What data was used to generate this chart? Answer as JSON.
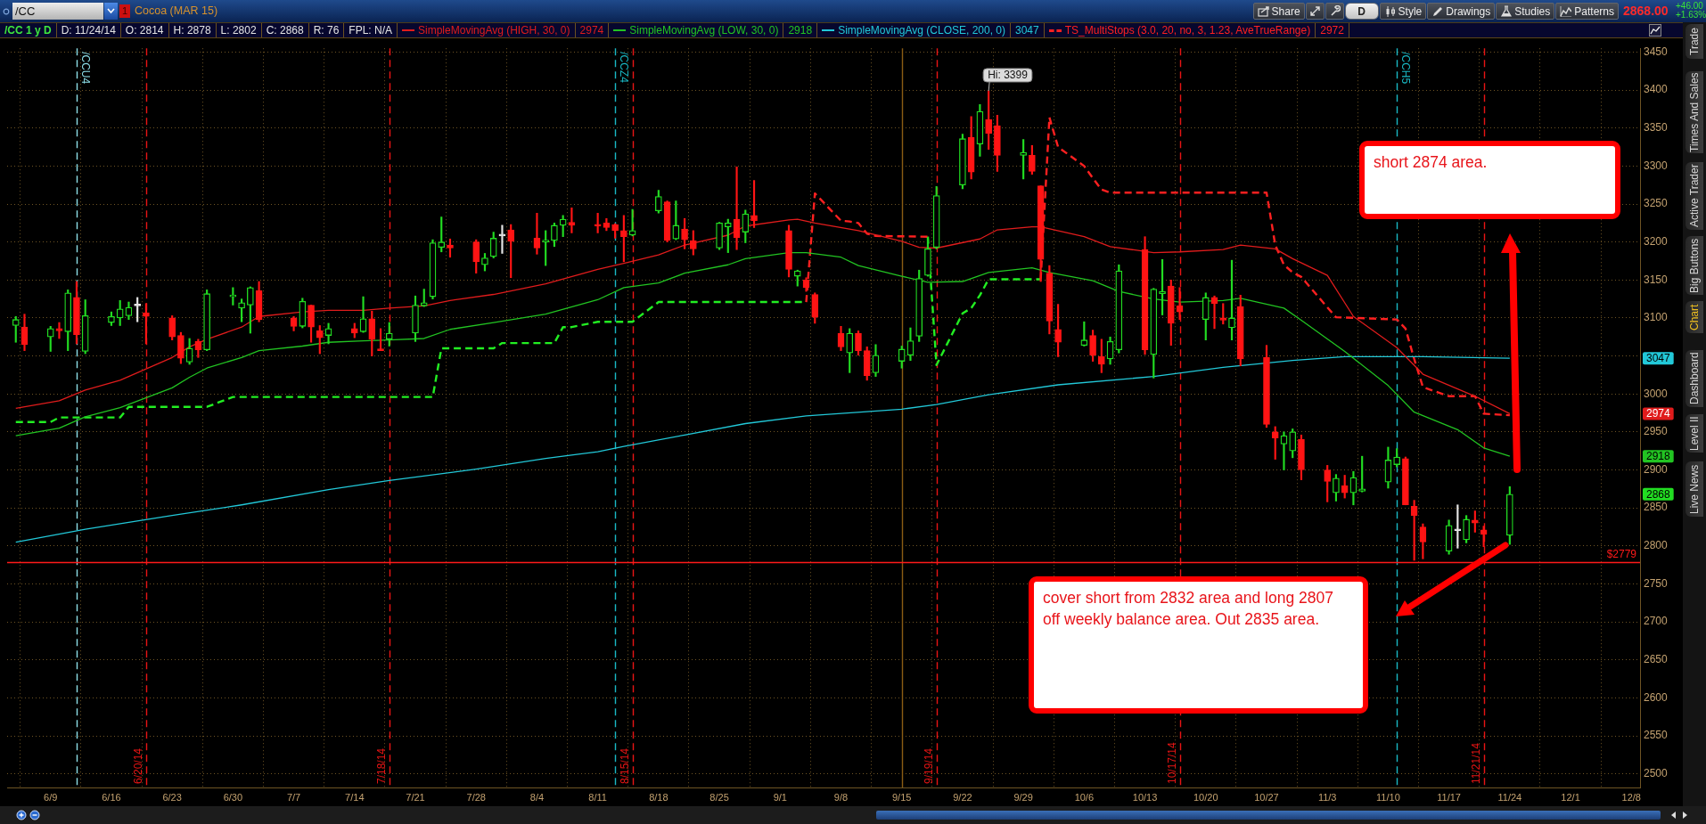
{
  "chart_data": {
    "type": "candlestick",
    "title": "/CC",
    "subtitle": "Cocoa (MAR 15)",
    "xlim": [
      "--06-04",
      "--12-09"
    ],
    "ylim": [
      2482,
      3455
    ],
    "xticks": [
      {
        "value": "--06-09",
        "label": "6/9"
      },
      {
        "value": "--06-16",
        "label": "6/16"
      },
      {
        "value": "--06-23",
        "label": "6/23"
      },
      {
        "value": "--06-30",
        "label": "6/30"
      },
      {
        "value": "--07-07",
        "label": "7/7"
      },
      {
        "value": "--07-14",
        "label": "7/14"
      },
      {
        "value": "--07-21",
        "label": "7/21"
      },
      {
        "value": "--07-28",
        "label": "7/28"
      },
      {
        "value": "--08-04",
        "label": "8/4"
      },
      {
        "value": "--08-11",
        "label": "8/11"
      },
      {
        "value": "--08-18",
        "label": "8/18"
      },
      {
        "value": "--08-25",
        "label": "8/25"
      },
      {
        "value": "--09-01",
        "label": "9/1"
      },
      {
        "value": "--09-08",
        "label": "9/8"
      },
      {
        "value": "--09-15",
        "label": "9/15"
      },
      {
        "value": "--09-22",
        "label": "9/22"
      },
      {
        "value": "--09-29",
        "label": "9/29"
      },
      {
        "value": "--10-06",
        "label": "10/6"
      },
      {
        "value": "--10-13",
        "label": "10/13"
      },
      {
        "value": "--10-20",
        "label": "10/20"
      },
      {
        "value": "--10-27",
        "label": "10/27"
      },
      {
        "value": "--11-03",
        "label": "11/3"
      },
      {
        "value": "--11-10",
        "label": "11/10"
      },
      {
        "value": "--11-17",
        "label": "11/17"
      },
      {
        "value": "--11-24",
        "label": "11/24"
      },
      {
        "value": "--12-01",
        "label": "12/1"
      },
      {
        "value": "--12-08",
        "label": "12/8"
      }
    ],
    "yticks": [
      2500,
      2550,
      2600,
      2650,
      2700,
      2750,
      2800,
      2850,
      2900,
      2950,
      3000,
      {
        "value": 3050,
        "label": null
      },
      3100,
      3150,
      3200,
      3250,
      3300,
      3350,
      3400,
      3450
    ],
    "grid": true,
    "legend": "top",
    "series": [
      {
        "x": [
          "--06-05",
          "--06-06",
          "--06-09",
          "--06-10",
          "--06-11",
          "--06-12",
          "--06-13",
          "--06-16",
          "--06-17",
          "--06-18",
          "--06-19",
          "--06-20",
          "--06-23",
          "--06-24",
          "--06-25",
          "--06-26",
          "--06-27",
          "--06-30",
          "--07-01",
          "--07-02",
          "--07-03",
          "--07-07",
          "--07-08",
          "--07-09",
          "--07-10",
          "--07-11",
          "--07-14",
          "--07-15",
          "--07-16",
          "--07-17",
          "--07-18",
          "--07-21",
          "--07-22",
          "--07-23",
          "--07-24",
          "--07-25",
          "--07-28",
          "--07-29",
          "--07-30",
          "--07-31",
          "--08-01",
          "--08-04",
          "--08-05",
          "--08-06",
          "--08-07",
          "--08-08",
          "--08-11",
          "--08-12",
          "--08-13",
          "--08-14",
          "--08-15",
          "--08-18",
          "--08-19",
          "--08-20",
          "--08-21",
          "--08-22",
          "--08-25",
          "--08-26",
          "--08-27",
          "--08-28",
          "--08-29",
          "--09-02",
          "--09-03",
          "--09-04",
          "--09-05",
          "--09-08",
          "--09-09",
          "--09-10",
          "--09-11",
          "--09-12",
          "--09-15",
          "--09-16",
          "--09-17",
          "--09-18",
          "--09-19",
          "--09-22",
          "--09-23",
          "--09-24",
          "--09-25",
          "--09-26",
          "--09-29",
          "--09-30",
          "--10-01",
          "--10-02",
          "--10-03",
          "--10-06",
          "--10-07",
          "--10-08",
          "--10-09",
          "--10-10",
          "--10-13",
          "--10-14",
          "--10-15",
          "--10-16",
          "--10-17",
          "--10-20",
          "--10-21",
          "--10-22",
          "--10-23",
          "--10-24",
          "--10-27",
          "--10-28",
          "--10-29",
          "--10-30",
          "--10-31",
          "--11-03",
          "--11-04",
          "--11-05",
          "--11-06",
          "--11-07",
          "--11-10",
          "--11-11",
          "--11-12",
          "--11-13",
          "--11-14",
          "--11-17",
          "--11-18",
          "--11-19",
          "--11-20",
          "--11-21",
          "--11-24"
        ],
        "ohlc": [
          [
            3090,
            3102,
            3068,
            3098
          ],
          [
            3088,
            3105,
            3057,
            3065
          ],
          [
            3075,
            3089,
            3056,
            3086
          ],
          [
            3086,
            3094,
            3073,
            3083
          ],
          [
            3082,
            3137,
            3057,
            3133
          ],
          [
            3127,
            3148,
            3066,
            3078
          ],
          [
            3056,
            3124,
            3053,
            3103
          ],
          [
            3094,
            3108,
            3090,
            3102
          ],
          [
            3100,
            3123,
            3090,
            3112
          ],
          [
            3103,
            3121,
            3098,
            3114
          ],
          [
            3116,
            3127,
            3095,
            3116
          ],
          [
            3107,
            3119,
            3066,
            3102
          ],
          [
            3100,
            3103,
            3071,
            3075
          ],
          [
            3077,
            3081,
            3040,
            3047
          ],
          [
            3042,
            3073,
            3039,
            3060
          ],
          [
            3069,
            3072,
            3048,
            3058
          ],
          [
            3058,
            3137,
            3057,
            3132
          ],
          [
            3128,
            3140,
            3117,
            3130
          ],
          [
            3113,
            3125,
            3095,
            3120
          ],
          [
            3117,
            3141,
            3080,
            3140
          ],
          [
            3136,
            3148,
            3095,
            3098
          ],
          [
            3100,
            3102,
            3083,
            3089
          ],
          [
            3089,
            3126,
            3087,
            3122
          ],
          [
            3117,
            3117,
            3068,
            3088
          ],
          [
            3083,
            3090,
            3053,
            3074
          ],
          [
            3077,
            3093,
            3066,
            3086
          ],
          [
            3086,
            3093,
            3074,
            3080
          ],
          [
            3082,
            3128,
            3081,
            3099
          ],
          [
            3099,
            3109,
            3050,
            3072
          ],
          [
            3058,
            3086,
            3057,
            3057
          ],
          [
            3072,
            3094,
            3063,
            3080
          ],
          [
            3080,
            3129,
            3069,
            3117
          ],
          [
            3116,
            3138,
            3115,
            3120
          ],
          [
            3128,
            3203,
            3125,
            3199
          ],
          [
            3193,
            3233,
            3187,
            3200
          ],
          [
            3196,
            3204,
            3180,
            3192
          ],
          [
            3200,
            3203,
            3159,
            3174
          ],
          [
            3170,
            3185,
            3162,
            3179
          ],
          [
            3181,
            3213,
            3179,
            3205
          ],
          [
            3208,
            3222,
            3185,
            3208
          ],
          [
            3216,
            3223,
            3153,
            3201
          ],
          [
            3205,
            3238,
            3184,
            3192
          ],
          [
            3200,
            3215,
            3169,
            3202
          ],
          [
            3202,
            3225,
            3194,
            3222
          ],
          [
            3222,
            3235,
            3207,
            3230
          ],
          [
            3226,
            3245,
            3212,
            3222
          ],
          [
            3223,
            3238,
            3212,
            3221
          ],
          [
            3225,
            3231,
            3215,
            3219
          ],
          [
            3223,
            3224,
            3205,
            3215
          ],
          [
            3215,
            3235,
            3174,
            3207
          ],
          [
            3209,
            3243,
            3208,
            3215
          ],
          [
            3241,
            3268,
            3238,
            3260
          ],
          [
            3253,
            3254,
            3200,
            3202
          ],
          [
            3204,
            3254,
            3203,
            3222
          ],
          [
            3217,
            3231,
            3191,
            3203
          ],
          [
            3202,
            3215,
            3183,
            3191
          ],
          [
            3192,
            3226,
            3190,
            3225
          ],
          [
            3220,
            3230,
            3186,
            3225
          ],
          [
            3230,
            3299,
            3190,
            3206
          ],
          [
            3213,
            3242,
            3199,
            3237
          ],
          [
            3235,
            3281,
            3219,
            3228
          ],
          [
            3215,
            3222,
            3154,
            3164
          ],
          [
            3155,
            3163,
            3142,
            3162
          ],
          [
            3150,
            3153,
            3135,
            3140
          ],
          [
            3131,
            3133,
            3093,
            3101
          ],
          [
            3080,
            3089,
            3057,
            3062
          ],
          [
            3054,
            3086,
            3028,
            3080
          ],
          [
            3080,
            3083,
            3051,
            3057
          ],
          [
            3057,
            3062,
            3018,
            3024
          ],
          [
            3028,
            3065,
            3023,
            3051
          ],
          [
            3043,
            3063,
            3034,
            3059
          ],
          [
            3051,
            3087,
            3044,
            3070
          ],
          [
            3076,
            3163,
            3069,
            3152
          ],
          [
            3156,
            3206,
            3155,
            3191
          ],
          [
            3193,
            3273,
            3191,
            3261
          ],
          [
            3275,
            3342,
            3270,
            3336
          ],
          [
            3338,
            3365,
            3283,
            3292
          ],
          [
            3329,
            3381,
            3313,
            3372
          ],
          [
            3361,
            3399,
            3322,
            3343
          ],
          [
            3353,
            3367,
            3293,
            3314
          ],
          [
            3314,
            3335,
            3283,
            3318
          ],
          [
            3314,
            3327,
            3289,
            3293
          ],
          [
            3274,
            3274,
            3148,
            3177
          ],
          [
            3159,
            3169,
            3079,
            3096
          ],
          [
            3085,
            3118,
            3049,
            3068
          ],
          [
            3064,
            3095,
            3063,
            3071
          ],
          [
            3077,
            3084,
            3043,
            3051
          ],
          [
            3049,
            3072,
            3028,
            3039
          ],
          [
            3046,
            3075,
            3039,
            3069
          ],
          [
            3058,
            3170,
            3054,
            3162
          ],
          [
            3190,
            3207,
            3052,
            3058
          ],
          [
            3052,
            3139,
            3021,
            3138
          ],
          [
            3132,
            3177,
            3104,
            3135
          ],
          [
            3142,
            3150,
            3064,
            3093
          ],
          [
            3116,
            3140,
            3098,
            3108
          ],
          [
            3098,
            3133,
            3071,
            3127
          ],
          [
            3127,
            3129,
            3086,
            3119
          ],
          [
            3100,
            3119,
            3092,
            3097
          ],
          [
            3087,
            3176,
            3071,
            3100
          ],
          [
            3115,
            3130,
            3037,
            3046
          ],
          [
            3048,
            3064,
            2956,
            2960
          ],
          [
            2950,
            2957,
            2914,
            2942
          ],
          [
            2934,
            2950,
            2900,
            2945
          ],
          [
            2925,
            2954,
            2916,
            2950
          ],
          [
            2940,
            2946,
            2887,
            2900
          ],
          [
            2900,
            2906,
            2858,
            2885
          ],
          [
            2870,
            2894,
            2859,
            2889
          ],
          [
            2879,
            2893,
            2863,
            2870
          ],
          [
            2870,
            2898,
            2854,
            2890
          ],
          [
            2872,
            2918,
            2871,
            2875
          ],
          [
            2884,
            2930,
            2876,
            2913
          ],
          [
            2907,
            2928,
            2904,
            2917
          ],
          [
            2915,
            2917,
            2854,
            2854
          ],
          [
            2852,
            2860,
            2781,
            2840
          ],
          [
            2825,
            2829,
            2783,
            2805
          ],
          [
            2793,
            2834,
            2789,
            2827
          ],
          [
            2820,
            2854,
            2797,
            2820
          ],
          [
            2808,
            2840,
            2804,
            2835
          ],
          [
            2834,
            2846,
            2818,
            2830
          ],
          [
            2821,
            2826,
            2799,
            2815
          ],
          [
            2814,
            2878,
            2802,
            2868
          ]
        ],
        "colors": [
          "#22dd22",
          "#ff1414",
          "#22dd22",
          "#ff1414",
          "#22dd22",
          "#ff1414",
          "#22dd22",
          "#22dd22",
          "#22dd22",
          "#22dd22",
          "#e6e6e6",
          "#ff1414",
          "#ff1414",
          "#ff1414",
          "#22dd22",
          "#ff1414",
          "#22dd22",
          "#22dd22",
          "#22dd22",
          "#22dd22",
          "#ff1414",
          "#ff1414",
          "#22dd22",
          "#ff1414",
          "#ff1414",
          "#22dd22",
          "#ff1414",
          "#22dd22",
          "#ff1414",
          "#ff1414",
          "#22dd22",
          "#22dd22",
          "#22dd22",
          "#22dd22",
          "#22dd22",
          "#ff1414",
          "#ff1414",
          "#22dd22",
          "#22dd22",
          "#e6e6e6",
          "#ff1414",
          "#ff1414",
          "#22dd22",
          "#22dd22",
          "#22dd22",
          "#ff1414",
          "#ff1414",
          "#ff1414",
          "#ff1414",
          "#ff1414",
          "#22dd22",
          "#22dd22",
          "#ff1414",
          "#22dd22",
          "#ff1414",
          "#ff1414",
          "#22dd22",
          "#22dd22",
          "#ff1414",
          "#22dd22",
          "#ff1414",
          "#ff1414",
          "#22dd22",
          "#ff1414",
          "#ff1414",
          "#ff1414",
          "#22dd22",
          "#ff1414",
          "#ff1414",
          "#22dd22",
          "#22dd22",
          "#22dd22",
          "#22dd22",
          "#22dd22",
          "#22dd22",
          "#22dd22",
          "#ff1414",
          "#22dd22",
          "#ff1414",
          "#ff1414",
          "#22dd22",
          "#ff1414",
          "#ff1414",
          "#ff1414",
          "#ff1414",
          "#22dd22",
          "#ff1414",
          "#ff1414",
          "#22dd22",
          "#22dd22",
          "#ff1414",
          "#22dd22",
          "#22dd22",
          "#ff1414",
          "#ff1414",
          "#22dd22",
          "#ff1414",
          "#ff1414",
          "#22dd22",
          "#ff1414",
          "#ff1414",
          "#ff1414",
          "#22dd22",
          "#22dd22",
          "#ff1414",
          "#ff1414",
          "#22dd22",
          "#ff1414",
          "#22dd22",
          "#22dd22",
          "#22dd22",
          "#22dd22",
          "#ff1414",
          "#ff1414",
          "#ff1414",
          "#22dd22",
          "#e6e6e6",
          "#22dd22",
          "#ff1414",
          "#ff1414",
          "#22dd22"
        ]
      },
      {
        "type": "line",
        "name": "SimpleMovingAvg (HIGH, 30, 0)",
        "color": "#e01c1c",
        "x": [
          "--06-05",
          "--06-10",
          "--06-13",
          "--06-17",
          "--06-23",
          "--06-25",
          "--06-27",
          "--07-01",
          "--07-03",
          "--07-08",
          "--07-11",
          "--07-15",
          "--07-18",
          "--07-22",
          "--07-25",
          "--07-30",
          "--08-05",
          "--08-11",
          "--08-14",
          "--08-18",
          "--08-21",
          "--08-26",
          "--08-28",
          "--09-02",
          "--09-03",
          "--09-05",
          "--09-10",
          "--09-15",
          "--09-17",
          "--09-19",
          "--09-24",
          "--09-26",
          "--09-30",
          "--10-01",
          "--10-06",
          "--10-09",
          "--10-14",
          "--10-17",
          "--10-22",
          "--10-24",
          "--10-28",
          "--10-30",
          "--11-03",
          "--11-06",
          "--11-11",
          "--11-14",
          "--11-20",
          "--11-24"
        ],
        "values": [
          2981,
          2991,
          3005,
          3018,
          3048,
          3062,
          3072,
          3088,
          3102,
          3108,
          3110,
          3110,
          3113,
          3116,
          3123,
          3131,
          3145,
          3164,
          3172,
          3183,
          3196,
          3209,
          3221,
          3229,
          3230,
          3225,
          3215,
          3201,
          3193,
          3192,
          3204,
          3216,
          3220,
          3220,
          3207,
          3194,
          3186,
          3187,
          3190,
          3196,
          3191,
          3178,
          3156,
          3102,
          3061,
          3026,
          2997,
          2974
        ]
      },
      {
        "type": "line",
        "name": "SimpleMovingAvg (LOW, 30, 0)",
        "color": "#22c422",
        "x": [
          "--06-05",
          "--06-10",
          "--06-13",
          "--06-17",
          "--06-23",
          "--06-25",
          "--06-27",
          "--07-01",
          "--07-03",
          "--07-08",
          "--07-11",
          "--07-15",
          "--07-18",
          "--07-22",
          "--07-25",
          "--07-30",
          "--08-05",
          "--08-11",
          "--08-14",
          "--08-18",
          "--08-21",
          "--08-26",
          "--08-28",
          "--09-02",
          "--09-04",
          "--09-08",
          "--09-10",
          "--09-15",
          "--09-18",
          "--09-22",
          "--09-25",
          "--09-30",
          "--10-02",
          "--10-07",
          "--10-10",
          "--10-14",
          "--10-17",
          "--10-22",
          "--10-24",
          "--10-29",
          "--10-31",
          "--11-05",
          "--11-10",
          "--11-13",
          "--11-18",
          "--11-21",
          "--11-24"
        ],
        "values": [
          2945,
          2955,
          2970,
          2982,
          3008,
          3022,
          3034,
          3048,
          3057,
          3063,
          3068,
          3070,
          3071,
          3073,
          3085,
          3094,
          3105,
          3124,
          3140,
          3146,
          3159,
          3170,
          3178,
          3186,
          3186,
          3180,
          3169,
          3155,
          3147,
          3148,
          3160,
          3166,
          3160,
          3149,
          3135,
          3125,
          3121,
          3123,
          3126,
          3113,
          3097,
          3056,
          3011,
          2976,
          2953,
          2929,
          2918
        ]
      },
      {
        "type": "line",
        "name": "SimpleMovingAvg (CLOSE, 200, 0)",
        "color": "#22c8d8",
        "x": [
          "--06-05",
          "--06-13",
          "--06-23",
          "--07-01",
          "--07-11",
          "--07-18",
          "--07-28",
          "--08-05",
          "--08-11",
          "--08-14",
          "--08-21",
          "--08-28",
          "--09-04",
          "--09-15",
          "--09-19",
          "--09-25",
          "--10-03",
          "--10-14",
          "--10-22",
          "--10-30",
          "--11-05",
          "--11-14",
          "--11-24"
        ],
        "values": [
          2805,
          2822,
          2840,
          2854,
          2874,
          2886,
          2901,
          2915,
          2924,
          2931,
          2946,
          2961,
          2971,
          2980,
          2986,
          2999,
          3012,
          3023,
          3035,
          3044,
          3049,
          3049,
          3047
        ]
      },
      {
        "type": "line",
        "name": "TS_MultiStops (3.0, 20, no, 3, 1.23, AveTrueRange)",
        "color": "#ff2020",
        "line_style": "dashed",
        "x": [
          "--09-04",
          "--09-05",
          "--09-08",
          "--09-09",
          "--09-10",
          "--09-11",
          "--09-12",
          "--09-18",
          "--09-25",
          "--10-01",
          "--10-02",
          "--10-03",
          "--10-06",
          "--10-07",
          "--10-08",
          "--10-09",
          "--10-27",
          "--10-28",
          "--10-29",
          "--10-30",
          "--10-31",
          "--11-03",
          "--11-04",
          "--11-11",
          "--11-12",
          "--11-13",
          "--11-14",
          "--11-17",
          "--11-20",
          "--11-21",
          "--11-24"
        ],
        "values": [
          3121,
          3264,
          3228,
          3227,
          3225,
          3211,
          3208,
          3207,
          null,
          3151,
          3364,
          3325,
          3300,
          3284,
          3269,
          3265,
          3265,
          3196,
          3170,
          3160,
          3154,
          3114,
          3101,
          3098,
          3086,
          3046,
          3009,
          2997,
          2997,
          2974,
          2972
        ]
      },
      {
        "type": "line",
        "color": "#22ee22",
        "line_style": "dashed",
        "x": [
          "--06-05",
          "--06-09",
          "--06-10",
          "--06-17",
          "--06-18",
          "--06-27",
          "--06-30",
          "--07-23",
          "--07-24",
          "--07-30",
          "--07-31",
          "--08-06",
          "--08-07",
          "--08-08",
          "--08-11",
          "--08-15",
          "--08-18",
          "--09-04",
          "--09-11",
          "--09-18",
          "--09-19",
          "--09-22",
          "--09-23",
          "--09-24",
          "--09-25",
          "--10-01"
        ],
        "values": [
          2963,
          2963,
          2969,
          2969,
          2983,
          2983,
          2996,
          2996,
          3060,
          3060,
          3067,
          3067,
          3088,
          3088,
          3095,
          3095,
          3121,
          3121,
          null,
          3207,
          3038,
          3106,
          3113,
          3130,
          3151,
          3151
        ]
      }
    ],
    "ref_lines": [
      {
        "axis": "x",
        "value": "--06-12",
        "label": "/CCU4",
        "color": "#8edfe8",
        "line_style": "dashed"
      },
      {
        "axis": "x",
        "value": "--08-13",
        "label": "/CCZ4",
        "color": "#19b8c4",
        "line_style": "dashed"
      },
      {
        "axis": "x",
        "value": "--11-11",
        "label": "/CCH5",
        "color": "#19b8c4",
        "line_style": "dashed"
      },
      {
        "axis": "x",
        "value": "--06-20",
        "label": "6/20/14",
        "color": "#e81414",
        "line_style": "dashed"
      },
      {
        "axis": "x",
        "value": "--07-18",
        "label": "7/18/14",
        "color": "#e81414",
        "line_style": "dashed"
      },
      {
        "axis": "x",
        "value": "--08-15",
        "label": "8/15/14",
        "color": "#e81414",
        "line_style": "dashed"
      },
      {
        "axis": "x",
        "value": "--09-19",
        "label": "9/19/14",
        "color": "#e81414",
        "line_style": "dashed"
      },
      {
        "axis": "x",
        "value": "--10-17",
        "label": "10/17/14",
        "color": "#e81414",
        "line_style": "dashed"
      },
      {
        "axis": "x",
        "value": "--11-21",
        "label": "11/21/14",
        "color": "#e81414",
        "line_style": "dashed"
      },
      {
        "axis": "x",
        "value": "--09-15",
        "color": "#8a5c14",
        "line_style": "solid"
      },
      {
        "axis": "y",
        "value": 2779,
        "label": "$2779",
        "color": "#ff1a1a",
        "line_style": "solid"
      }
    ],
    "annotations": [
      "/CC 1 y D",
      "D: 11/24/14",
      "O: 2814",
      "H: 2878",
      "L: 2802",
      "C: 2868",
      "R: 76",
      "FPL: N/A",
      "2974",
      "2918",
      "3047",
      "2972",
      "short 2874 area.",
      "cover short from 2832 area and long 2807 off weekly balance area. Out 2835 area.",
      {
        "text": "Hi: 3399",
        "x": "--09-25",
        "y": 3399
      },
      {
        "text": "2868",
        "y": 2868
      },
      {
        "text": "2974",
        "y": 2974
      },
      {
        "text": "2918",
        "y": 2918
      },
      {
        "text": "3047",
        "y": 3047
      },
      "1",
      "Share",
      "D",
      "Style",
      "Drawings",
      "Studies",
      "Patterns",
      "2868.00",
      "+46.00",
      "+1.63%",
      "Trade",
      "Times And Sales",
      "Active Trader",
      "Big Buttons",
      "Chart",
      "Dashboard",
      "Level II",
      "Live News"
    ]
  }
}
